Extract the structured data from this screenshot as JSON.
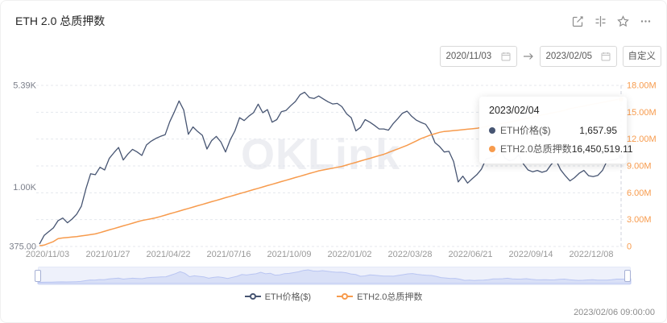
{
  "header": {
    "title": "ETH 2.0 总质押数"
  },
  "icons": {
    "toolbar": [
      "edit-icon",
      "axis-settings-icon",
      "star-icon",
      "more-icon"
    ],
    "calendar": "calendar-icon",
    "arrow": "arrow-right-icon"
  },
  "controls": {
    "start_date": "2020/11/03",
    "end_date": "2023/02/05",
    "range_button": "自定义"
  },
  "watermark": "OKLink",
  "tooltip": {
    "date": "2023/02/04",
    "rows": [
      {
        "label": "ETH价格($)",
        "value": "1,657.95"
      },
      {
        "label": "ETH2.0总质押数",
        "value": "16,450,519.11"
      }
    ]
  },
  "footer": {
    "updated_at": "2023/02/06 09:00:00"
  },
  "colors": {
    "price": "#475572",
    "staking": "#f79b4d",
    "grid": "#e4e7ed",
    "left_axis_text": "#7b7f8a",
    "right_axis_text": "#f79b4d",
    "x_axis_text": "#999999",
    "crosshair": "#cfd2dc",
    "brush_bg": "#eef1fb",
    "brush_fill": "#d9e0f7",
    "brush_stroke": "#b9c5f2"
  },
  "chart_data": {
    "type": "line",
    "title": "ETH 2.0 总质押数",
    "x_start": "2020/11/03",
    "x_end": "2023/02/05",
    "x_tick_labels": [
      "2020/11/03",
      "2021/01/27",
      "2021/04/22",
      "2021/07/16",
      "2021/10/09",
      "2022/01/02",
      "2022/03/28",
      "2022/06/21",
      "2022/09/14",
      "2022/12/08"
    ],
    "grid": "horizontal-dashed",
    "legend_position": "bottom-center",
    "left_axis": {
      "scale": "log",
      "min": 375,
      "max": 5390,
      "ticks": [
        {
          "label": "5.39K",
          "value": 5390
        },
        {
          "label": "1.00K",
          "value": 1000
        },
        {
          "label": "375.00",
          "value": 375
        }
      ]
    },
    "right_axis": {
      "scale": "linear",
      "min": 0,
      "max": 18,
      "unit": "millions",
      "ticks": [
        {
          "label": "18.00M",
          "value": 18
        },
        {
          "label": "15.00M",
          "value": 15
        },
        {
          "label": "12.00M",
          "value": 12
        },
        {
          "label": "9.00M",
          "value": 9
        },
        {
          "label": "6.00M",
          "value": 6
        },
        {
          "label": "3.00M",
          "value": 3
        },
        {
          "label": "0",
          "value": 0
        }
      ]
    },
    "crosshair": {
      "date": "2023/02/04",
      "at_last_point": true
    },
    "series": [
      {
        "name": "ETH价格($)",
        "color": "#475572",
        "axis": "left",
        "unit": "USD",
        "values": [
          390,
          450,
          480,
          510,
          575,
          600,
          555,
          590,
          640,
          730,
          980,
          1250,
          1230,
          1390,
          1330,
          1610,
          1770,
          1930,
          1570,
          1730,
          1870,
          1790,
          1690,
          2010,
          2140,
          2240,
          2320,
          2380,
          2950,
          3480,
          4170,
          3580,
          2400,
          2710,
          2510,
          2360,
          1880,
          2160,
          2320,
          2110,
          1790,
          2190,
          2540,
          3160,
          3010,
          3240,
          3430,
          3950,
          3430,
          3610,
          2930,
          3060,
          3490,
          3560,
          3850,
          4130,
          4620,
          4810,
          4410,
          4340,
          4520,
          4310,
          4110,
          3960,
          4000,
          3790,
          3370,
          3160,
          2540,
          2690,
          3060,
          2930,
          2780,
          2620,
          2620,
          2570,
          2860,
          3110,
          3400,
          3520,
          3230,
          3030,
          2920,
          2830,
          2520,
          2090,
          1960,
          1790,
          1810,
          1530,
          1090,
          1200,
          1070,
          1150,
          1230,
          1350,
          1600,
          1630,
          1700,
          1880,
          1620,
          1550,
          1580,
          1710,
          1470,
          1330,
          1290,
          1320,
          1280,
          1310,
          1460,
          1570,
          1335,
          1210,
          1110,
          1170,
          1260,
          1320,
          1210,
          1190,
          1215,
          1320,
          1550,
          1570,
          1585,
          1657.95
        ],
        "last_value": 1657.95
      },
      {
        "name": "ETH2.0总质押数",
        "color": "#f79b4d",
        "axis": "right",
        "unit": "millions",
        "values": [
          0.08,
          0.15,
          0.35,
          0.55,
          0.88,
          0.95,
          1.0,
          1.05,
          1.1,
          1.18,
          1.25,
          1.32,
          1.4,
          1.55,
          1.7,
          1.85,
          2.0,
          2.15,
          2.3,
          2.45,
          2.6,
          2.75,
          2.9,
          3.0,
          3.1,
          3.2,
          3.35,
          3.5,
          3.65,
          3.8,
          3.95,
          4.1,
          4.25,
          4.4,
          4.55,
          4.7,
          4.85,
          5.0,
          5.15,
          5.3,
          5.45,
          5.6,
          5.75,
          5.9,
          6.05,
          6.2,
          6.35,
          6.5,
          6.65,
          6.8,
          6.95,
          7.1,
          7.25,
          7.4,
          7.55,
          7.7,
          7.85,
          8.0,
          8.15,
          8.3,
          8.45,
          8.55,
          8.65,
          8.75,
          8.85,
          8.95,
          9.1,
          9.25,
          9.4,
          9.55,
          9.7,
          9.85,
          10.0,
          10.15,
          10.3,
          10.5,
          10.7,
          10.9,
          11.1,
          11.3,
          11.55,
          11.8,
          12.05,
          12.25,
          12.45,
          12.6,
          12.75,
          12.85,
          12.9,
          12.95,
          13.0,
          13.05,
          13.1,
          13.15,
          13.2,
          13.3,
          13.4,
          13.5,
          13.6,
          13.7,
          13.8,
          13.9,
          14.0,
          14.1,
          14.2,
          14.35,
          14.5,
          14.6,
          14.7,
          14.8,
          14.9,
          15.0,
          15.1,
          15.25,
          15.4,
          15.5,
          15.6,
          15.7,
          15.8,
          15.9,
          16.0,
          16.1,
          16.2,
          16.3,
          16.4,
          16.45
        ],
        "last_value": 16450519.11
      }
    ]
  }
}
